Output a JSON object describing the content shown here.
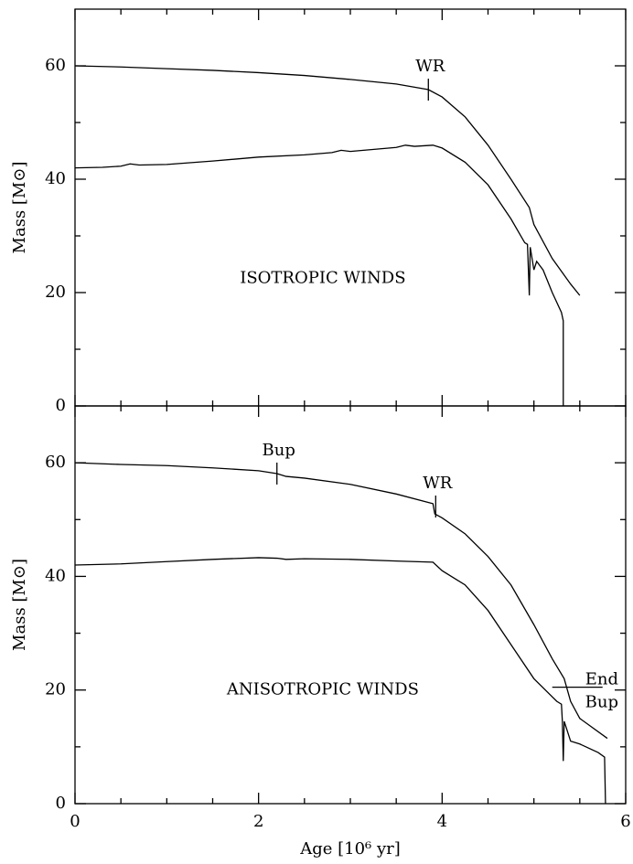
{
  "chart_data": [
    {
      "type": "line",
      "ylabel": "Mass [M⊙]",
      "panel_label": "ISOTROPIC WINDS",
      "xlim": [
        0,
        6
      ],
      "xticks": [
        0,
        2,
        4,
        6
      ],
      "xminorticks": [
        0.5,
        1,
        1.5,
        2.5,
        3,
        3.5,
        4.5,
        5,
        5.5
      ],
      "ylim": [
        0,
        70
      ],
      "yticks": [
        0,
        20,
        40,
        60
      ],
      "yminorticks": [
        10,
        30,
        50
      ],
      "series": [
        {
          "color": "#000000",
          "x": [
            0,
            0.5,
            1,
            1.5,
            2,
            2.5,
            3,
            3.5,
            3.85,
            4,
            4.25,
            4.5,
            4.75,
            4.95,
            5.0,
            5.2,
            5.4,
            5.5
          ],
          "values": [
            60,
            59.8,
            59.5,
            59.2,
            58.8,
            58.3,
            57.6,
            56.8,
            55.8,
            54.5,
            51,
            46,
            40,
            35,
            32,
            26,
            21.5,
            19.5
          ]
        },
        {
          "color": "#000000",
          "x": [
            0,
            0.3,
            0.5,
            0.6,
            0.7,
            1,
            1.5,
            2,
            2.5,
            2.8,
            2.9,
            3,
            3.5,
            3.6,
            3.7,
            3.9,
            4,
            4.25,
            4.5,
            4.75,
            4.9,
            4.93,
            4.95,
            4.96,
            5.0,
            5.03,
            5.1,
            5.2,
            5.3,
            5.32,
            5.32
          ],
          "values": [
            42,
            42.1,
            42.3,
            42.7,
            42.5,
            42.6,
            43.2,
            43.9,
            44.3,
            44.7,
            45.1,
            44.9,
            45.6,
            46,
            45.8,
            46,
            45.5,
            43,
            39,
            33,
            28.8,
            28.5,
            19.5,
            28,
            24,
            25.5,
            24,
            20,
            16.5,
            15,
            0
          ]
        }
      ],
      "annotations": [
        {
          "text": "WR",
          "x": 3.85,
          "y": 55.8
        }
      ]
    },
    {
      "type": "line",
      "ylabel": "Mass [M⊙]",
      "xlabel": "Age [10⁶ yr]",
      "panel_label": "ANISOTROPIC WINDS",
      "xlim": [
        0,
        6
      ],
      "xticks": [
        0,
        2,
        4,
        6
      ],
      "xminorticks": [
        0.5,
        1,
        1.5,
        2.5,
        3,
        3.5,
        4.5,
        5,
        5.5
      ],
      "ylim": [
        0,
        70
      ],
      "yticks": [
        0,
        20,
        40,
        60
      ],
      "yminorticks": [
        10,
        30,
        50
      ],
      "series": [
        {
          "color": "#000000",
          "x": [
            0,
            0.5,
            1,
            1.5,
            2,
            2.2,
            2.3,
            2.5,
            3,
            3.5,
            3.9,
            3.92,
            4,
            4.25,
            4.5,
            4.75,
            5,
            5.2,
            5.33,
            5.4,
            5.5,
            5.8
          ],
          "values": [
            60,
            59.7,
            59.5,
            59.1,
            58.6,
            58.1,
            57.6,
            57.3,
            56.2,
            54.5,
            52.8,
            51,
            50.3,
            47.5,
            43.5,
            38.5,
            31.5,
            25.5,
            22,
            18,
            15,
            11.5
          ]
        },
        {
          "color": "#000000",
          "x": [
            0,
            0.5,
            1,
            1.5,
            2,
            2.2,
            2.3,
            2.5,
            3,
            3.5,
            3.9,
            4,
            4.25,
            4.5,
            4.75,
            5,
            5.25,
            5.3,
            5.31,
            5.32,
            5.33,
            5.4,
            5.5,
            5.7,
            5.77,
            5.78
          ],
          "values": [
            42,
            42.2,
            42.6,
            43,
            43.3,
            43.2,
            43,
            43.1,
            43,
            42.7,
            42.5,
            41,
            38.5,
            34,
            28,
            22,
            18,
            17.5,
            14.5,
            7.5,
            14.5,
            11,
            10.5,
            9,
            8.2,
            0
          ]
        }
      ],
      "annotations": [
        {
          "text": "Bup",
          "x": 2.2,
          "y": 58.1
        },
        {
          "text": "WR",
          "x": 3.93,
          "y": 52.3
        },
        {
          "text": [
            "End",
            "Bup"
          ],
          "x": 5.2,
          "y": 20.5
        }
      ]
    }
  ]
}
